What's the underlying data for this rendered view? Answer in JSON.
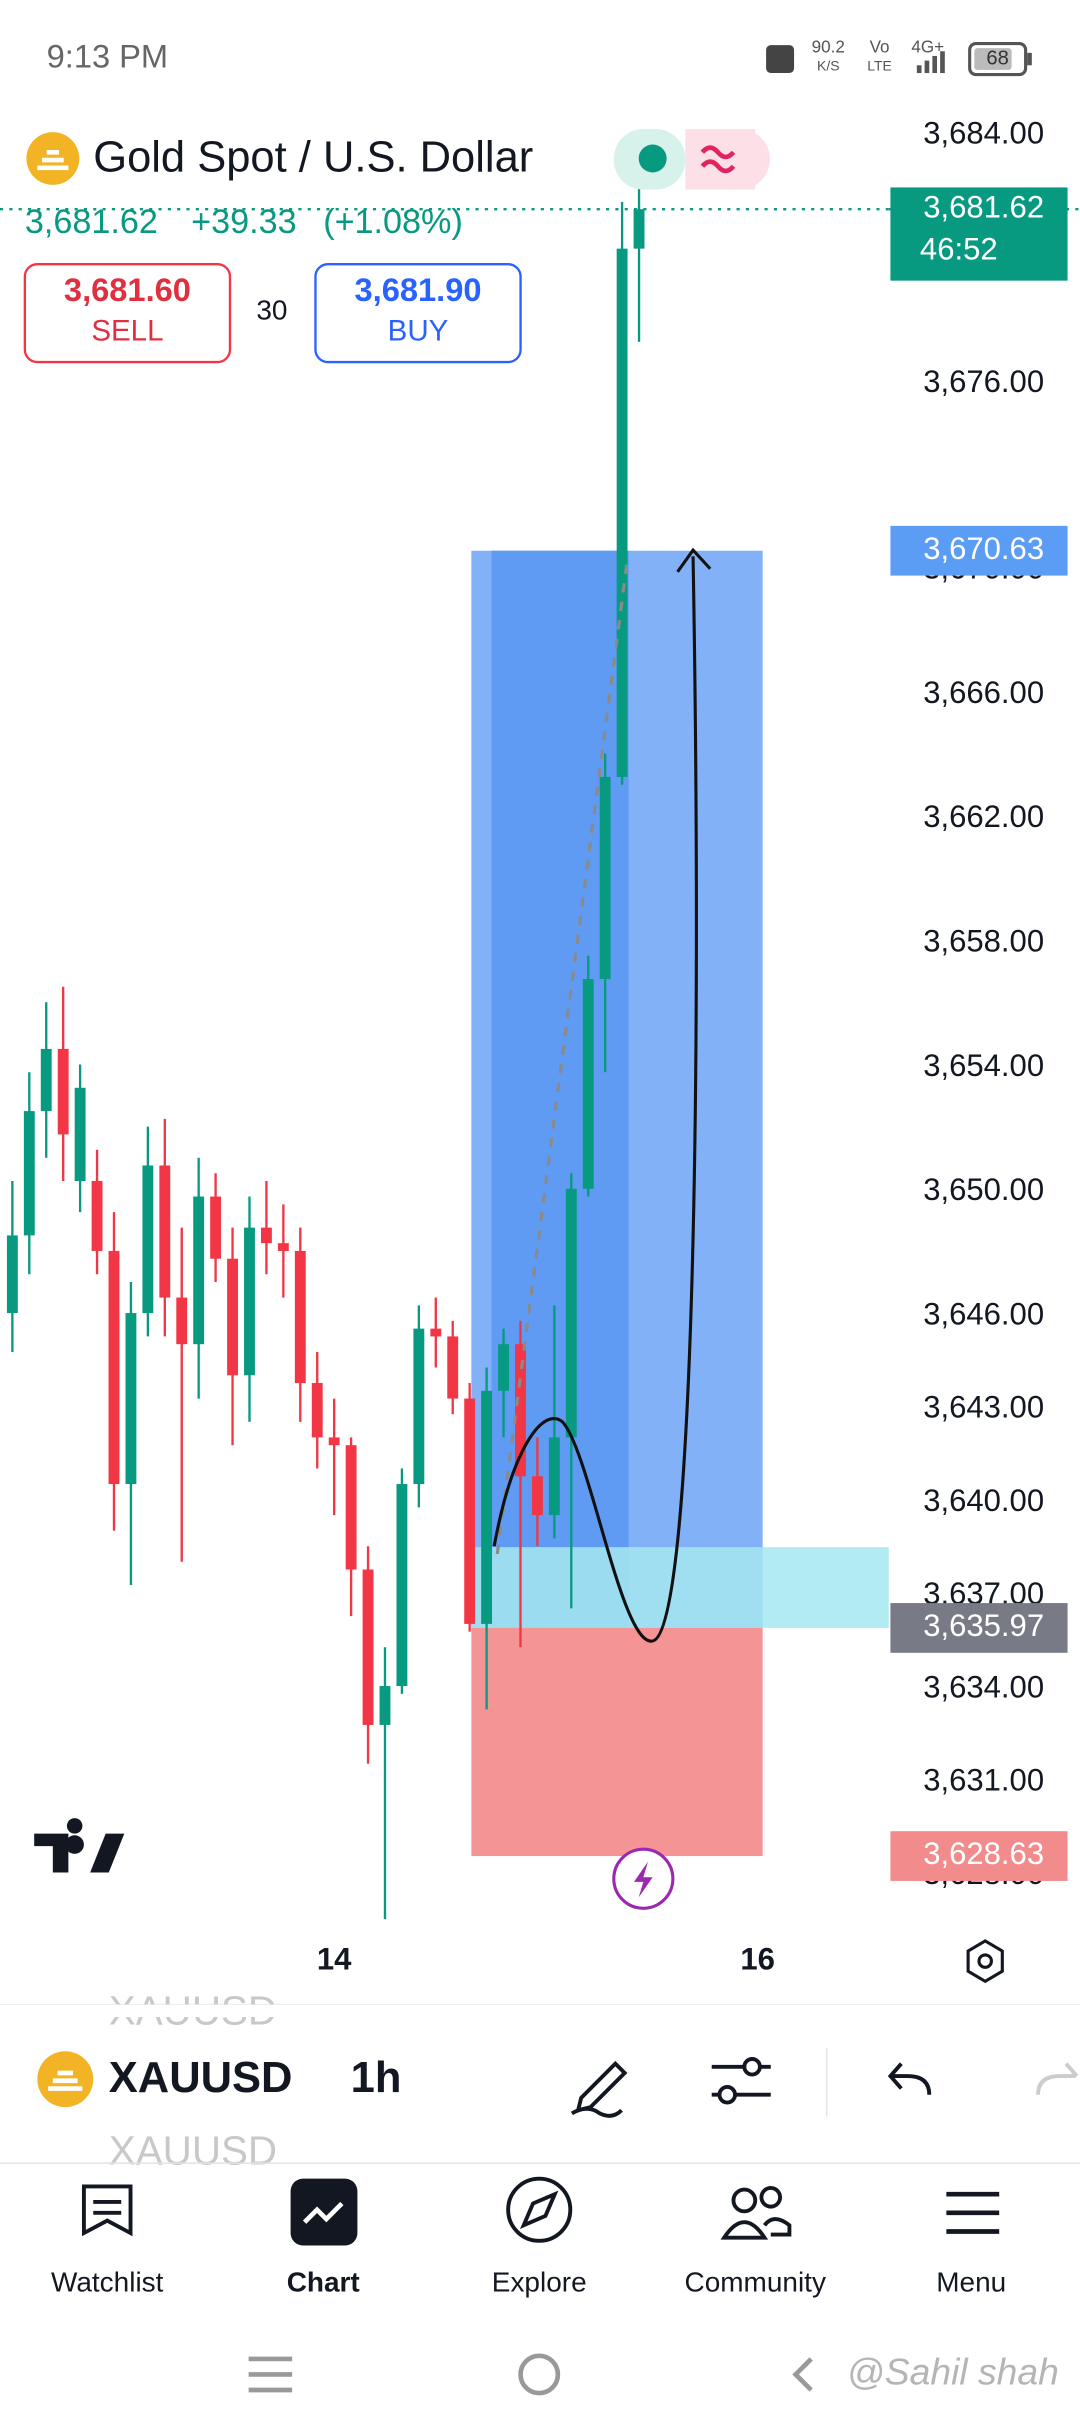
{
  "status_bar": {
    "time": "9:13 PM",
    "network_speed": "90.2",
    "speed_unit": "K/S",
    "volte_top": "Vo",
    "volte_bottom": "LTE",
    "network_type": "4G+",
    "battery": "68"
  },
  "header": {
    "symbol_name": "Gold Spot / U.S. Dollar",
    "last_price": "3,681.62",
    "change": "+39.33",
    "change_percent": "(+1.08%)",
    "sell_price": "3,681.60",
    "sell_label": "SELL",
    "spread": "30",
    "buy_price": "3,681.90",
    "buy_label": "BUY"
  },
  "chart_data": {
    "type": "candlestick",
    "up_color": "#089981",
    "down_color": "#f23645",
    "open": [
      3646.1,
      3648.6,
      3652.6,
      3654.6,
      3650.35,
      3650.35,
      3648.1,
      3640.6,
      3646.1,
      3650.85,
      3646.6,
      3645.1,
      3649.85,
      3647.85,
      3644.1,
      3648.85,
      3648.35,
      3648.1,
      3643.85,
      3642.1,
      3641.85,
      3637.85,
      3632.85,
      3634.1,
      3640.6,
      3645.6,
      3645.35,
      3643.35,
      3636.1,
      3643.6,
      3645.1,
      3640.85,
      3639.6,
      3642.1,
      3650.1,
      3656.85,
      3663.35,
      3680.35
    ],
    "high": [
      3650.35,
      3653.85,
      3656.1,
      3656.6,
      3654.1,
      3651.35,
      3649.35,
      3647.1,
      3652.1,
      3652.35,
      3648.85,
      3651.1,
      3650.6,
      3648.85,
      3649.85,
      3650.35,
      3649.6,
      3648.85,
      3644.85,
      3643.35,
      3642.1,
      3638.6,
      3635.35,
      3641.1,
      3646.35,
      3646.6,
      3645.85,
      3643.85,
      3644.35,
      3645.6,
      3645.85,
      3642.1,
      3646.35,
      3650.6,
      3657.6,
      3664.1,
      3681.85,
      3682.35
    ],
    "low": [
      3644.85,
      3647.35,
      3651.1,
      3650.35,
      3649.35,
      3647.35,
      3639.1,
      3637.35,
      3645.35,
      3645.35,
      3638.1,
      3643.35,
      3647.1,
      3641.85,
      3642.6,
      3647.35,
      3646.6,
      3642.6,
      3641.1,
      3639.6,
      3636.35,
      3631.6,
      3626.6,
      3633.85,
      3639.85,
      3644.35,
      3642.85,
      3635.85,
      3633.35,
      3642.1,
      3635.35,
      3638.6,
      3638.85,
      3636.6,
      3649.85,
      3653.85,
      3663.1,
      3677.35
    ],
    "close": [
      3648.6,
      3652.6,
      3654.6,
      3651.85,
      3653.35,
      3648.1,
      3640.6,
      3646.1,
      3650.85,
      3646.6,
      3645.1,
      3649.85,
      3647.85,
      3644.1,
      3648.85,
      3648.35,
      3648.1,
      3643.85,
      3642.1,
      3641.85,
      3637.85,
      3632.85,
      3634.1,
      3640.6,
      3645.6,
      3645.35,
      3643.35,
      3636.1,
      3643.6,
      3645.1,
      3640.85,
      3639.6,
      3642.1,
      3650.1,
      3656.85,
      3663.35,
      3680.35,
      3681.62
    ],
    "xlim": [
      -0.73,
      51.75
    ],
    "xticks": [
      {
        "value": 19,
        "label": "14"
      },
      {
        "value": 44,
        "label": "16"
      }
    ],
    "ylim": [
      3626.35,
      3685.35
    ],
    "yticks": [
      {
        "value": 3684,
        "label": "3,684.00"
      },
      {
        "value": 3676,
        "label": "3,676.00"
      },
      {
        "value": 3670,
        "label": "3,670.00"
      },
      {
        "value": 3666,
        "label": "3,666.00"
      },
      {
        "value": 3662,
        "label": "3,662.00"
      },
      {
        "value": 3658,
        "label": "3,658.00"
      },
      {
        "value": 3654,
        "label": "3,654.00"
      },
      {
        "value": 3650,
        "label": "3,650.00"
      },
      {
        "value": 3646,
        "label": "3,646.00"
      },
      {
        "value": 3643,
        "label": "3,643.00"
      },
      {
        "value": 3640,
        "label": "3,640.00"
      },
      {
        "value": 3637,
        "label": "3,637.00"
      },
      {
        "value": 3634,
        "label": "3,634.00"
      },
      {
        "value": 3631,
        "label": "3,631.00"
      },
      {
        "value": 3628,
        "label": "3,628.00"
      }
    ],
    "grid": false,
    "current_price": {
      "value": 3681.62,
      "label": "3,681.62",
      "countdown": "46:52",
      "color": "#089981"
    },
    "position": {
      "target": {
        "value": 3670.63,
        "label": "3,670.63",
        "color": "#5b9cf5"
      },
      "entry": {
        "value": 3635.97,
        "label": "3,635.97",
        "color": "#787b86"
      },
      "stop": {
        "value": 3628.63,
        "label": "3,628.63",
        "color": "#f28b8b"
      },
      "x_start": 27.1,
      "x_end": 44.3,
      "profit_color": "#82b1f8",
      "loss_color": "#f59494"
    }
  },
  "toolbar": {
    "symbol_prev": "XAUUSD",
    "symbol": "XAUUSD",
    "symbol_next": "XAUUSD",
    "interval": "1h"
  },
  "nav": {
    "items": [
      "Watchlist",
      "Chart",
      "Explore",
      "Community",
      "Menu"
    ]
  },
  "watermark": "@Sahil shah"
}
